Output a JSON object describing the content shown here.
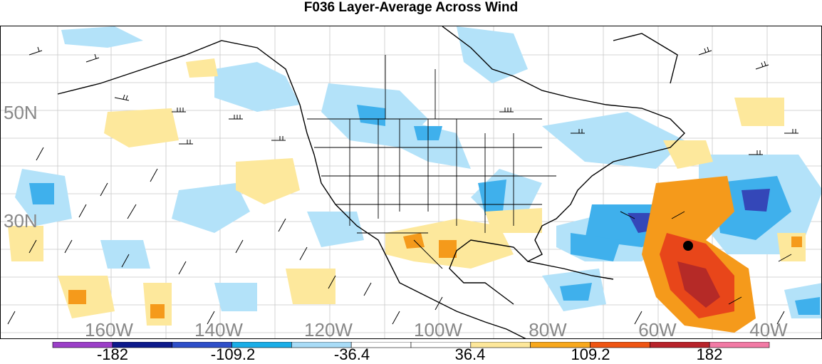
{
  "title": "F036 Layer-Average Across Wind",
  "map": {
    "lat_labels": [
      "50N",
      "30N"
    ],
    "lon_labels": [
      "160W",
      "140W",
      "120W",
      "100W",
      "80W",
      "60W",
      "40W"
    ],
    "storm_marker": "black-dot"
  },
  "colorbar": {
    "labels": [
      "-182",
      "-109.2",
      "-36.4",
      "36.4",
      "109.2",
      "182"
    ],
    "colors": [
      "#9b3fc8",
      "#0d1a8c",
      "#2e4fc9",
      "#1aaee8",
      "#a9dcf7",
      "#ffffff",
      "#ffffff",
      "#fde79a",
      "#f8a81c",
      "#ef5513",
      "#b8232b",
      "#f27aa5"
    ]
  },
  "colors": {
    "light_blue": "#b3e2f9",
    "mid_blue": "#3fb0ec",
    "dark_blue": "#3447b8",
    "light_yellow": "#fde89c",
    "orange": "#f59a1b",
    "red_orange": "#e8461a",
    "dark_red": "#b52a27"
  }
}
